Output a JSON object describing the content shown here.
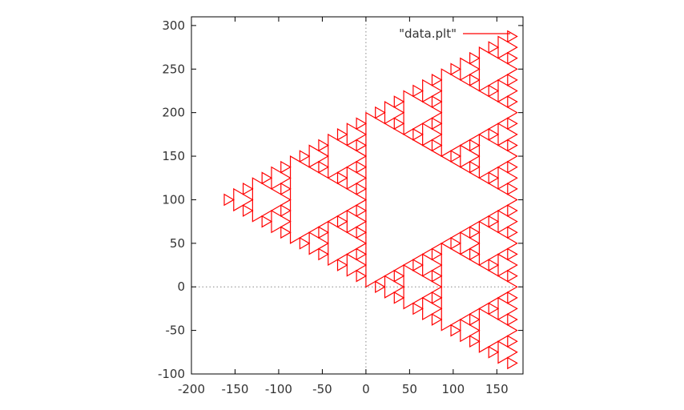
{
  "chart_data": {
    "type": "line",
    "title": "",
    "xlabel": "",
    "ylabel": "",
    "xlim": [
      -200,
      180
    ],
    "ylim": [
      -100,
      310
    ],
    "xticks": [
      "-200",
      "-150",
      "-100",
      "-50",
      "0",
      "50",
      "100",
      "150"
    ],
    "yticks": [
      "-100",
      "-50",
      "0",
      "50",
      "100",
      "150",
      "200",
      "250",
      "300"
    ],
    "grid": false,
    "zero_axes": "dotted",
    "legend": {
      "placement": "top-right",
      "entries": [
        "\"data.plt\""
      ]
    },
    "series": [
      {
        "name": "\"data.plt\"",
        "color": "#ff0000",
        "shape": "Sierpinski triangle (outlines of the removed triangles)",
        "outer_vertices": [
          [
            -173.2,
            100
          ],
          [
            173.2,
            300
          ],
          [
            173.2,
            -100
          ]
        ],
        "recursion_levels": 5
      }
    ]
  }
}
